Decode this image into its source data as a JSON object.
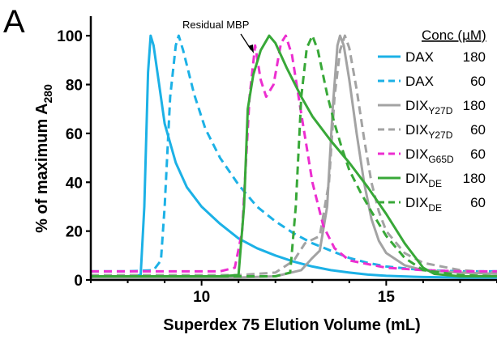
{
  "panel_label": "A",
  "annotation": "Residual MBP",
  "legend_header": "Conc (µM)",
  "colors": {
    "cyan": "#1cb1e6",
    "gray": "#a3a3a3",
    "magenta": "#ec2ed0",
    "green": "#38a838",
    "axis": "#000000"
  },
  "chart_data": {
    "type": "line",
    "title": "",
    "xlabel": "Superdex 75 Elution Volume (mL)",
    "ylabel": "% of maximum A280",
    "ylabel_parts": {
      "base": "% of maximum A",
      "sub": "280"
    },
    "xlim": [
      7,
      18
    ],
    "ylim": [
      0,
      108
    ],
    "xticks": [
      10,
      15
    ],
    "yticks": [
      0,
      20,
      40,
      60,
      80,
      100
    ],
    "grid": false,
    "legend_position": "right",
    "series": [
      {
        "name": "DAX",
        "label_base": "DAX",
        "label_sub": "",
        "conc": "180",
        "color": "#1cb1e6",
        "dash": "solid",
        "points": [
          [
            7,
            1.5
          ],
          [
            8,
            1.5
          ],
          [
            8.35,
            2
          ],
          [
            8.45,
            30
          ],
          [
            8.55,
            85
          ],
          [
            8.62,
            100
          ],
          [
            8.7,
            96
          ],
          [
            8.85,
            80
          ],
          [
            9.0,
            64
          ],
          [
            9.3,
            48
          ],
          [
            9.6,
            38
          ],
          [
            10,
            30
          ],
          [
            10.5,
            23
          ],
          [
            11,
            17
          ],
          [
            11.5,
            13
          ],
          [
            12,
            10
          ],
          [
            12.5,
            7.5
          ],
          [
            13,
            5.5
          ],
          [
            13.5,
            4
          ],
          [
            14,
            3
          ],
          [
            14.5,
            2.2
          ],
          [
            15,
            1.7
          ],
          [
            16,
            1.2
          ],
          [
            17,
            1
          ],
          [
            18,
            1
          ]
        ]
      },
      {
        "name": "DAX",
        "label_base": "DAX",
        "label_sub": "",
        "conc": "60",
        "color": "#1cb1e6",
        "dash": "dashed",
        "points": [
          [
            7,
            3.5
          ],
          [
            8,
            3.5
          ],
          [
            8.7,
            4
          ],
          [
            8.9,
            8
          ],
          [
            9.0,
            30
          ],
          [
            9.15,
            75
          ],
          [
            9.3,
            96
          ],
          [
            9.38,
            100
          ],
          [
            9.5,
            94
          ],
          [
            9.8,
            76
          ],
          [
            10.1,
            62
          ],
          [
            10.5,
            50
          ],
          [
            11,
            39
          ],
          [
            11.5,
            30
          ],
          [
            12,
            24
          ],
          [
            12.5,
            19
          ],
          [
            13,
            15
          ],
          [
            13.5,
            12
          ],
          [
            14,
            9
          ],
          [
            14.5,
            7
          ],
          [
            15,
            5.5
          ],
          [
            16,
            4
          ],
          [
            17,
            3.5
          ],
          [
            18,
            3.5
          ]
        ]
      },
      {
        "name": "DIXY27D",
        "label_base": "DIX",
        "label_sub": "Y27D",
        "conc": "180",
        "color": "#a3a3a3",
        "dash": "solid",
        "points": [
          [
            7,
            1
          ],
          [
            11,
            1
          ],
          [
            12,
            1.5
          ],
          [
            12.7,
            4
          ],
          [
            13.0,
            9
          ],
          [
            13.2,
            12
          ],
          [
            13.4,
            30
          ],
          [
            13.55,
            70
          ],
          [
            13.68,
            96
          ],
          [
            13.75,
            100
          ],
          [
            13.85,
            96
          ],
          [
            14.0,
            82
          ],
          [
            14.2,
            60
          ],
          [
            14.4,
            40
          ],
          [
            14.6,
            25
          ],
          [
            14.8,
            16
          ],
          [
            15,
            11
          ],
          [
            15.5,
            6
          ],
          [
            16,
            4
          ],
          [
            17,
            3
          ],
          [
            18,
            2.5
          ]
        ]
      },
      {
        "name": "DIXY27D",
        "label_base": "DIX",
        "label_sub": "Y27D",
        "conc": "60",
        "color": "#a3a3a3",
        "dash": "dashed",
        "points": [
          [
            7,
            2
          ],
          [
            11,
            2
          ],
          [
            12,
            3
          ],
          [
            12.5,
            8
          ],
          [
            12.8,
            15
          ],
          [
            13.2,
            18
          ],
          [
            13.45,
            40
          ],
          [
            13.6,
            75
          ],
          [
            13.75,
            94
          ],
          [
            13.88,
            100
          ],
          [
            14.0,
            95
          ],
          [
            14.2,
            78
          ],
          [
            14.4,
            58
          ],
          [
            14.6,
            40
          ],
          [
            14.8,
            28
          ],
          [
            15,
            20
          ],
          [
            15.5,
            11
          ],
          [
            16,
            7
          ],
          [
            17,
            4
          ],
          [
            18,
            3
          ]
        ]
      },
      {
        "name": "DIXG65D",
        "label_base": "DIX",
        "label_sub": "G65D",
        "conc": "60",
        "color": "#ec2ed0",
        "dash": "dashed",
        "points": [
          [
            7,
            3.5
          ],
          [
            10.5,
            3.5
          ],
          [
            10.9,
            5
          ],
          [
            11.1,
            20
          ],
          [
            11.3,
            75
          ],
          [
            11.45,
            96
          ],
          [
            11.6,
            82
          ],
          [
            11.75,
            75
          ],
          [
            11.95,
            80
          ],
          [
            12.15,
            97
          ],
          [
            12.28,
            100
          ],
          [
            12.45,
            92
          ],
          [
            12.7,
            68
          ],
          [
            13.0,
            40
          ],
          [
            13.3,
            22
          ],
          [
            13.6,
            13
          ],
          [
            14,
            8
          ],
          [
            15,
            5
          ],
          [
            16,
            4
          ],
          [
            17,
            3.5
          ],
          [
            18,
            3.5
          ]
        ]
      },
      {
        "name": "DIXDE",
        "label_base": "DIX",
        "label_sub": "DE",
        "conc": "180",
        "color": "#38a838",
        "dash": "solid",
        "points": [
          [
            7,
            1.5
          ],
          [
            10.5,
            1.5
          ],
          [
            11.0,
            2
          ],
          [
            11.15,
            30
          ],
          [
            11.25,
            70
          ],
          [
            11.4,
            84
          ],
          [
            11.6,
            94
          ],
          [
            11.83,
            100
          ],
          [
            12.0,
            97
          ],
          [
            12.3,
            87
          ],
          [
            12.7,
            75
          ],
          [
            13,
            67
          ],
          [
            13.5,
            57
          ],
          [
            14,
            48
          ],
          [
            14.5,
            38
          ],
          [
            15,
            27
          ],
          [
            15.5,
            15
          ],
          [
            16,
            5
          ],
          [
            16.3,
            2.5
          ],
          [
            17,
            1.5
          ],
          [
            18,
            1.5
          ]
        ]
      },
      {
        "name": "DIXDE",
        "label_base": "DIX",
        "label_sub": "DE",
        "conc": "60",
        "color": "#38a838",
        "dash": "dashed",
        "points": [
          [
            7,
            1.5
          ],
          [
            12,
            1.5
          ],
          [
            12.4,
            3
          ],
          [
            12.55,
            30
          ],
          [
            12.7,
            75
          ],
          [
            12.85,
            95
          ],
          [
            13.0,
            100
          ],
          [
            13.15,
            94
          ],
          [
            13.4,
            76
          ],
          [
            13.6,
            64
          ],
          [
            13.8,
            54
          ],
          [
            14.0,
            45
          ],
          [
            14.3,
            36
          ],
          [
            14.6,
            28
          ],
          [
            15,
            18
          ],
          [
            15.5,
            9
          ],
          [
            16,
            4
          ],
          [
            17,
            2
          ],
          [
            18,
            1.5
          ]
        ]
      }
    ]
  }
}
